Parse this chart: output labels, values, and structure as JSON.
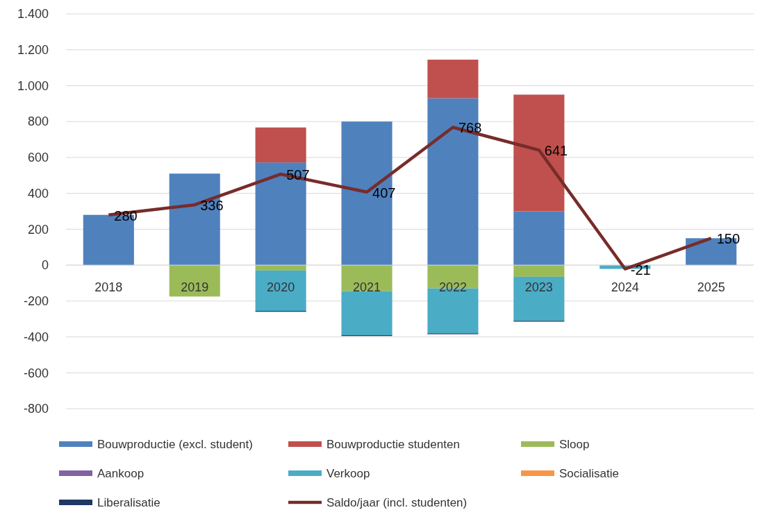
{
  "chart_data": {
    "type": "bar",
    "stacked": true,
    "categories": [
      "2018",
      "2019",
      "2020",
      "2021",
      "2022",
      "2023",
      "2024",
      "2025"
    ],
    "series": [
      {
        "name": "Bouwproductie (excl. student)",
        "color": "#4f81bd",
        "values": [
          280,
          510,
          572,
          800,
          930,
          300,
          null,
          150
        ]
      },
      {
        "name": "Bouwproductie studenten",
        "color": "#c0504d",
        "values": [
          null,
          null,
          195,
          null,
          215,
          650,
          null,
          null
        ]
      },
      {
        "name": "Sloop",
        "color": "#9bbb59",
        "values": [
          null,
          -175,
          -30,
          -145,
          -130,
          -65,
          null,
          null
        ]
      },
      {
        "name": "Aankoop",
        "color": "#8064a2",
        "values": [
          null,
          null,
          null,
          null,
          null,
          null,
          null,
          null
        ]
      },
      {
        "name": "Verkoop",
        "color": "#4bacc6",
        "values": [
          null,
          null,
          -225,
          -245,
          -250,
          -245,
          -21,
          null
        ]
      },
      {
        "name": "Socialisatie",
        "color": "#f79646",
        "values": [
          null,
          null,
          null,
          null,
          null,
          null,
          null,
          null
        ]
      },
      {
        "name": "Liberalisatie",
        "color": "#1f3864",
        "values": [
          null,
          null,
          -5,
          -5,
          -5,
          -5,
          null,
          null
        ]
      },
      {
        "name": "Saldo/jaar (incl. studenten)",
        "type": "line",
        "color": "#772c2a",
        "values": [
          280,
          336,
          507,
          407,
          768,
          641,
          -21,
          150
        ],
        "value_labels": [
          "280",
          "336",
          "507",
          "407",
          "768",
          "641",
          "-21",
          "150"
        ]
      }
    ],
    "ylim": [
      -800,
      1400
    ],
    "yticks": [
      {
        "value": -800,
        "label": "-800"
      },
      {
        "value": -600,
        "label": "-600"
      },
      {
        "value": -400,
        "label": "-400"
      },
      {
        "value": -200,
        "label": "-200"
      },
      {
        "value": 0,
        "label": "0"
      },
      {
        "value": 200,
        "label": "200"
      },
      {
        "value": 400,
        "label": "400"
      },
      {
        "value": 600,
        "label": "600"
      },
      {
        "value": 800,
        "label": "800"
      },
      {
        "value": 1000,
        "label": "1.000"
      },
      {
        "value": 1200,
        "label": "1.200"
      },
      {
        "value": 1400,
        "label": "1.400"
      }
    ],
    "grid": "y",
    "legend": "bottom",
    "line_style": "solid"
  }
}
